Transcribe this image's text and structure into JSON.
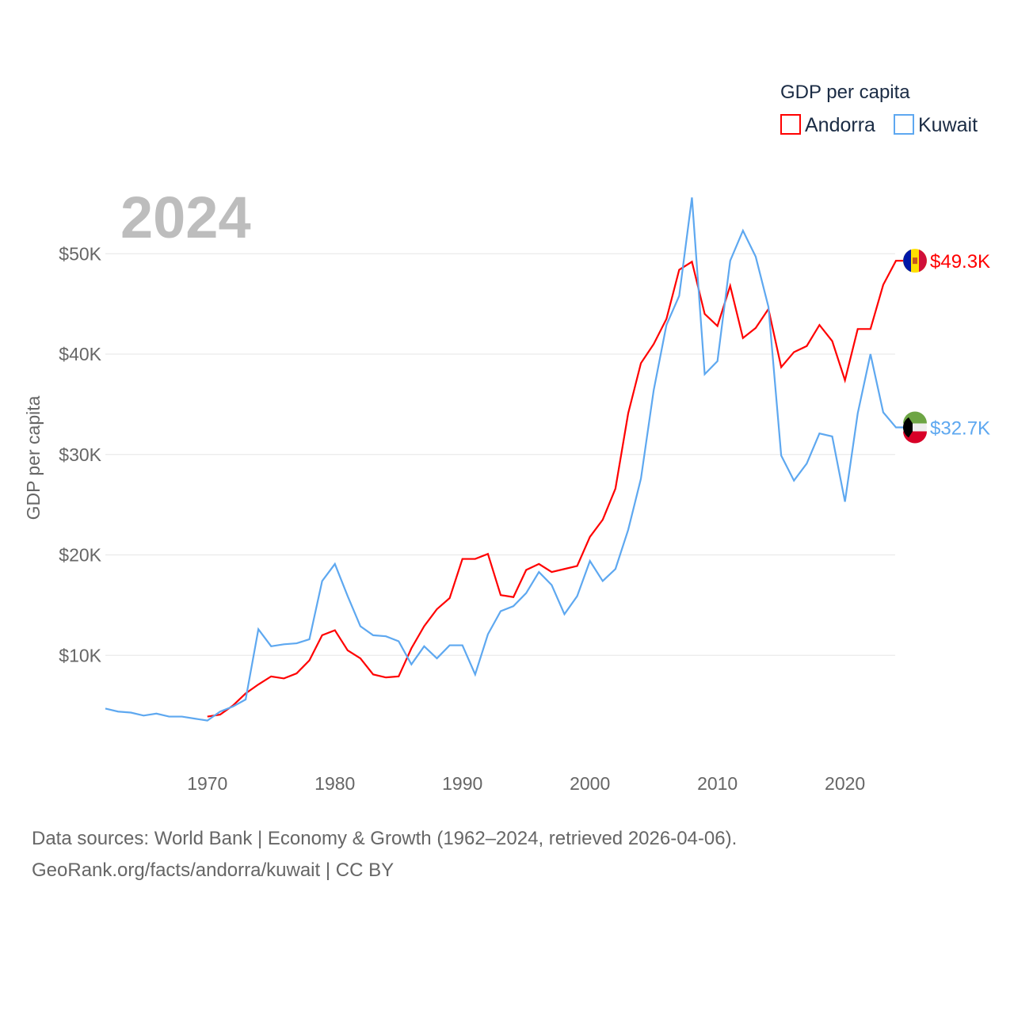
{
  "chart_data": {
    "type": "line",
    "title": "2024",
    "ylabel": "GDP per capita",
    "xlabel": "",
    "legend": {
      "title": "GDP per capita",
      "placement": "top-right"
    },
    "xlim": [
      1962,
      2024
    ],
    "ylim": [
      0,
      55000
    ],
    "x_ticks": [
      1970,
      1980,
      1990,
      2000,
      2010,
      2020
    ],
    "y_ticks": [
      {
        "v": 10000,
        "label": "$10K"
      },
      {
        "v": 20000,
        "label": "$20K"
      },
      {
        "v": 30000,
        "label": "$30K"
      },
      {
        "v": 40000,
        "label": "$40K"
      },
      {
        "v": 50000,
        "label": "$50K"
      }
    ],
    "grid": true,
    "series": [
      {
        "name": "Andorra",
        "color": "#ff0000",
        "end_label": "$49.3K",
        "start_year": 1970,
        "values": [
          3.9,
          4.1,
          5.0,
          6.2,
          7.1,
          7.9,
          7.7,
          8.2,
          9.5,
          12.0,
          12.5,
          10.5,
          9.7,
          8.1,
          7.8,
          7.9,
          10.7,
          12.9,
          14.6,
          15.7,
          19.6,
          19.6,
          20.1,
          16.0,
          15.8,
          18.5,
          19.1,
          18.3,
          18.6,
          18.9,
          21.8,
          23.5,
          26.6,
          34.1,
          39.1,
          41.0,
          43.5,
          48.4,
          49.2,
          44.0,
          42.8,
          46.8,
          41.6,
          42.6,
          44.5,
          38.7,
          40.2,
          40.8,
          42.9,
          41.3,
          37.4,
          42.5,
          42.5,
          46.9,
          49.3
        ]
      },
      {
        "name": "Kuwait",
        "color": "#5ea8f0",
        "end_label": "$32.7K",
        "start_year": 1962,
        "values": [
          4.7,
          4.4,
          4.3,
          4.0,
          4.2,
          3.9,
          3.9,
          3.7,
          3.5,
          4.4,
          4.9,
          5.6,
          12.6,
          10.9,
          11.1,
          11.2,
          11.6,
          17.4,
          19.1,
          15.9,
          12.9,
          12.0,
          11.9,
          11.4,
          9.1,
          10.9,
          9.7,
          11.0,
          11.0,
          8.1,
          12.1,
          14.4,
          14.9,
          16.2,
          18.3,
          17.0,
          14.1,
          15.9,
          19.4,
          17.4,
          18.6,
          22.5,
          27.6,
          36.4,
          42.9,
          45.8,
          55.6,
          38.0,
          39.3,
          49.3,
          52.3,
          49.7,
          44.7,
          29.9,
          27.4,
          29.1,
          32.1,
          31.8,
          25.3,
          34.1,
          40.0,
          34.2,
          32.7
        ]
      }
    ],
    "value_unit": "thousand USD"
  },
  "footer": {
    "line1": "Data sources: World Bank | Economy & Growth (1962–2024, retrieved 2026-04-06).",
    "line2": "GeoRank.org/facts/andorra/kuwait | CC BY"
  }
}
